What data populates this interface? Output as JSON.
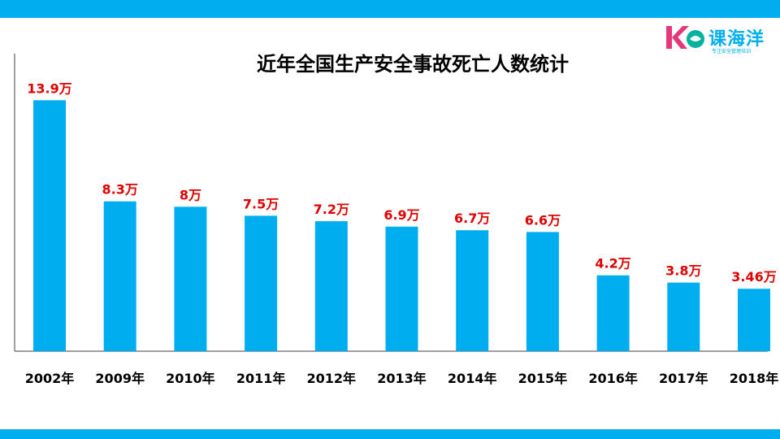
{
  "brand": {
    "name": "课海洋",
    "tagline": "专注安全管理培训",
    "color": "#00AEEF"
  },
  "chart_data": {
    "type": "bar",
    "title": "近年全国生产安全事故死亡人数统计",
    "xlabel": "",
    "ylabel": "",
    "categories": [
      "2002年",
      "2009年",
      "2010年",
      "2011年",
      "2012年",
      "2013年",
      "2014年",
      "2015年",
      "2016年",
      "2017年",
      "2018年"
    ],
    "values": [
      13.9,
      8.3,
      8,
      7.5,
      7.2,
      6.9,
      6.7,
      6.6,
      4.2,
      3.8,
      3.46
    ],
    "labels": [
      "13.9万",
      "8.3万",
      "8万",
      "7.5万",
      "7.2万",
      "6.9万",
      "6.7万",
      "6.6万",
      "4.2万",
      "3.8万",
      "3.46万"
    ],
    "ylim": [
      0,
      14.5
    ],
    "grid": false,
    "legend": "none",
    "bar_color": "#00AEEF",
    "label_color": "#E00000"
  }
}
